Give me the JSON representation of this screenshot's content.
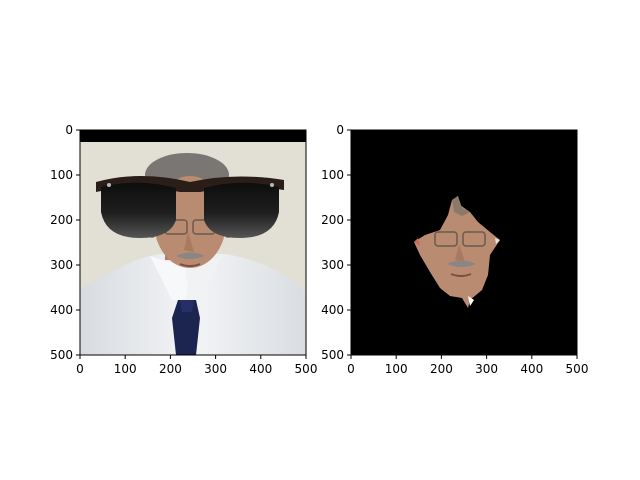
{
  "figure": {
    "background": "#ffffff",
    "panels": [
      {
        "name": "left-panel",
        "content": "portrait with sunglasses overlay",
        "x_ticks": [
          "0",
          "100",
          "200",
          "300",
          "400",
          "500"
        ],
        "y_ticks": [
          "0",
          "100",
          "200",
          "300",
          "400",
          "500"
        ]
      },
      {
        "name": "right-panel",
        "content": "masked face region on black background",
        "x_ticks": [
          "0",
          "100",
          "200",
          "300",
          "400",
          "500"
        ],
        "y_ticks": [
          "0",
          "100",
          "200",
          "300",
          "400",
          "500"
        ]
      }
    ]
  },
  "colors": {
    "mask_background": "#000000",
    "shirt": "#e9ecef",
    "tie": "#1c2550",
    "skin": "#b98c72",
    "hair": "#7a7674",
    "wall": "#e3e1d6",
    "lens": "#1a1a1a",
    "frame": "#2b1d18"
  }
}
